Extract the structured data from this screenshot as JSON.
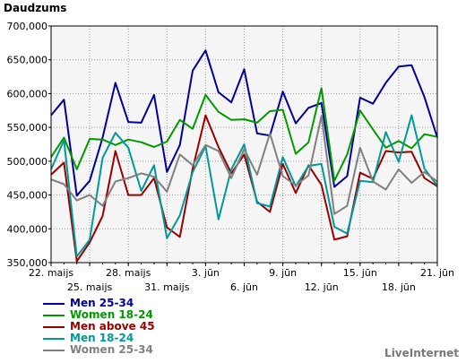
{
  "chart_data": {
    "type": "line",
    "title": "Daudzums",
    "ylim": [
      350000,
      700000
    ],
    "yticks": [
      "350,000",
      "400,000",
      "450,000",
      "500,000",
      "550,000",
      "600,000",
      "650,000",
      "700,000"
    ],
    "ytick_values": [
      350000,
      400000,
      450000,
      500000,
      550000,
      600000,
      650000,
      700000
    ],
    "x_count": 31,
    "xtick_labels": [
      {
        "i": 0,
        "label": "22. maijs",
        "row": 0
      },
      {
        "i": 3,
        "label": "25. maijs",
        "row": 1
      },
      {
        "i": 6,
        "label": "28. maijs",
        "row": 0
      },
      {
        "i": 9,
        "label": "31. maijs",
        "row": 1
      },
      {
        "i": 12,
        "label": "3. jūn",
        "row": 0
      },
      {
        "i": 15,
        "label": "6. jūn",
        "row": 1
      },
      {
        "i": 18,
        "label": "9. jūn",
        "row": 0
      },
      {
        "i": 21,
        "label": "12. jūn",
        "row": 1
      },
      {
        "i": 24,
        "label": "15. jūn",
        "row": 0
      },
      {
        "i": 27,
        "label": "18. jūn",
        "row": 1
      },
      {
        "i": 30,
        "label": "21. jūn",
        "row": 0
      }
    ],
    "grid": true,
    "legend_position": "bottom-left",
    "series": [
      {
        "name": "Men 25-34",
        "color": "#000099",
        "values": [
          568000,
          591000,
          449000,
          471000,
          535000,
          616000,
          558000,
          557000,
          598000,
          484000,
          524000,
          634000,
          664000,
          602000,
          587000,
          636000,
          541000,
          538000,
          603000,
          556000,
          579000,
          586000,
          462000,
          478000,
          594000,
          585000,
          616000,
          640000,
          642000,
          595000,
          535000
        ]
      },
      {
        "name": "Women 18-24",
        "color": "#009900",
        "values": [
          506000,
          535000,
          488000,
          533000,
          532000,
          524000,
          532000,
          528000,
          521000,
          529000,
          561000,
          548000,
          598000,
          573000,
          561000,
          562000,
          557000,
          574000,
          576000,
          511000,
          528000,
          608000,
          471000,
          510000,
          575000,
          547000,
          520000,
          530000,
          519000,
          540000,
          536000
        ]
      },
      {
        "name": "Men above 45",
        "color": "#990000",
        "values": [
          480000,
          498000,
          352000,
          380000,
          419000,
          515000,
          450000,
          450000,
          475000,
          402000,
          388000,
          489000,
          568000,
          521000,
          482000,
          510000,
          440000,
          425000,
          496000,
          453000,
          494000,
          465000,
          384000,
          389000,
          483000,
          474000,
          515000,
          513000,
          514000,
          475000,
          463000
        ]
      },
      {
        "name": "Men 18-24",
        "color": "#009999",
        "values": [
          488000,
          531000,
          359000,
          384000,
          505000,
          542000,
          520000,
          456000,
          494000,
          386000,
          420000,
          484000,
          522000,
          414000,
          488000,
          525000,
          438000,
          433000,
          506000,
          463000,
          493000,
          496000,
          403000,
          393000,
          471000,
          469000,
          543000,
          499000,
          568000,
          489000,
          464000
        ]
      },
      {
        "name": "Women 25-34",
        "color": "#808080",
        "values": [
          473000,
          466000,
          442000,
          450000,
          434000,
          470000,
          475000,
          482000,
          477000,
          455000,
          510000,
          494000,
          524000,
          515000,
          475000,
          518000,
          480000,
          541000,
          478000,
          464000,
          479000,
          567000,
          422000,
          434000,
          520000,
          470000,
          458000,
          488000,
          468000,
          484000,
          470000
        ]
      }
    ]
  },
  "branding": {
    "label": "LiveInternet"
  }
}
